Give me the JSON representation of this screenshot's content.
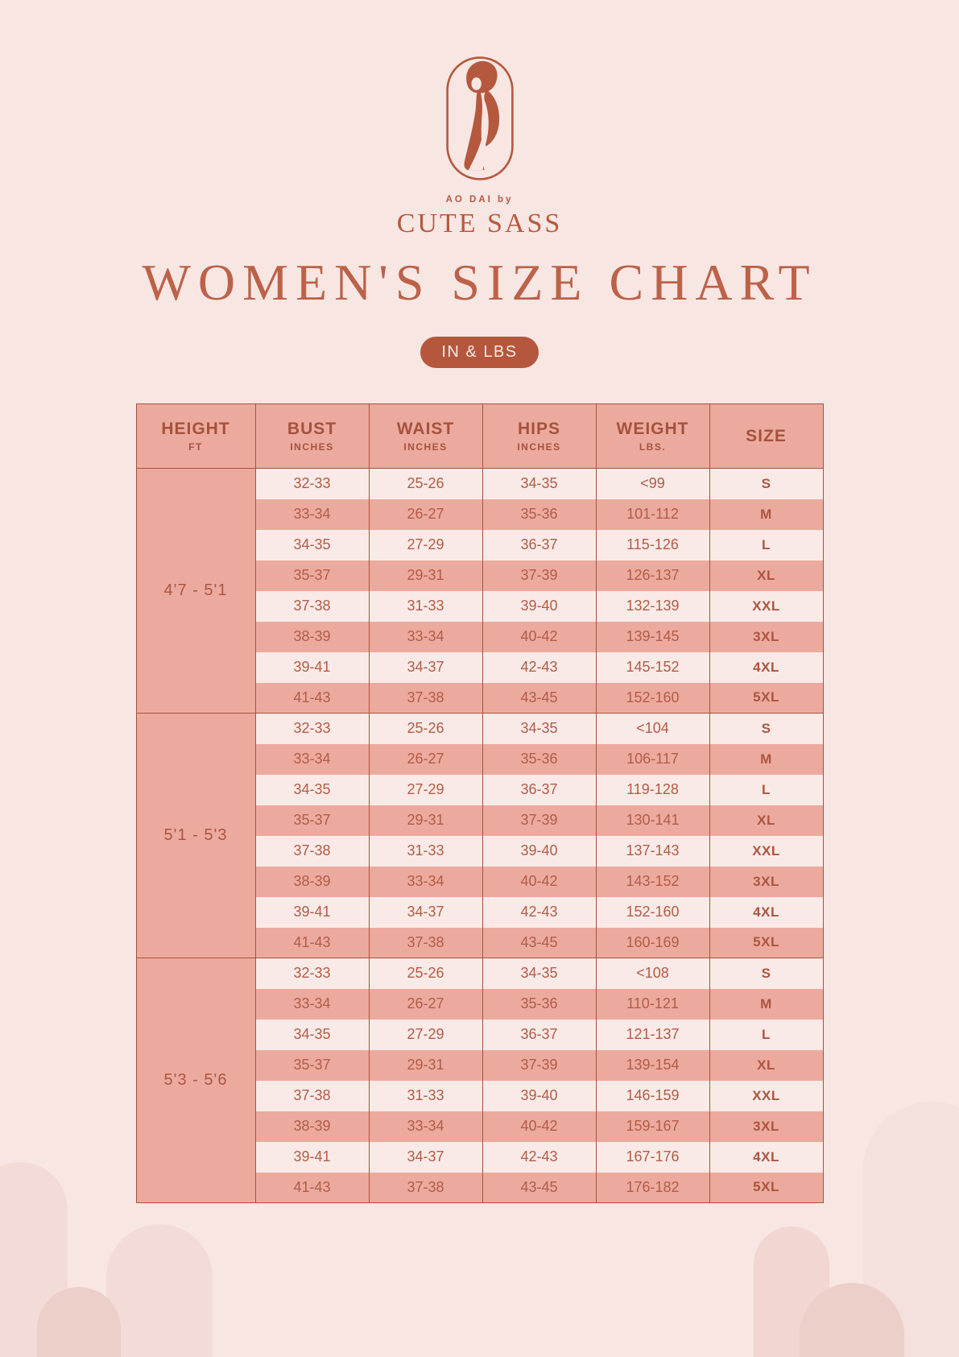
{
  "page": {
    "background": "#f8e6e3",
    "accent": "#b5593e",
    "title_color": "#bc6249",
    "row_pink": "#ecaa9e",
    "row_light": "#f9eae7",
    "border_color": "#a7523c"
  },
  "logo": {
    "tagline": "AO DAI by",
    "brand": "CUTE SASS"
  },
  "title": "WOMEN'S SIZE CHART",
  "unit_badge": "IN & LBS",
  "size_table": {
    "headers": [
      {
        "label": "HEIGHT",
        "sub": "FT"
      },
      {
        "label": "BUST",
        "sub": "INCHES"
      },
      {
        "label": "WAIST",
        "sub": "INCHES"
      },
      {
        "label": "HIPS",
        "sub": "INCHES"
      },
      {
        "label": "WEIGHT",
        "sub": "LBS."
      },
      {
        "label": "SIZE",
        "sub": ""
      }
    ],
    "groups": [
      {
        "height": "4'7 - 5'1",
        "rows": [
          {
            "bust": "32-33",
            "waist": "25-26",
            "hips": "34-35",
            "weight": "<99",
            "size": "S"
          },
          {
            "bust": "33-34",
            "waist": "26-27",
            "hips": "35-36",
            "weight": "101-112",
            "size": "M"
          },
          {
            "bust": "34-35",
            "waist": "27-29",
            "hips": "36-37",
            "weight": "115-126",
            "size": "L"
          },
          {
            "bust": "35-37",
            "waist": "29-31",
            "hips": "37-39",
            "weight": "126-137",
            "size": "XL"
          },
          {
            "bust": "37-38",
            "waist": "31-33",
            "hips": "39-40",
            "weight": "132-139",
            "size": "XXL"
          },
          {
            "bust": "38-39",
            "waist": "33-34",
            "hips": "40-42",
            "weight": "139-145",
            "size": "3XL"
          },
          {
            "bust": "39-41",
            "waist": "34-37",
            "hips": "42-43",
            "weight": "145-152",
            "size": "4XL"
          },
          {
            "bust": "41-43",
            "waist": "37-38",
            "hips": "43-45",
            "weight": "152-160",
            "size": "5XL"
          }
        ]
      },
      {
        "height": "5'1 - 5'3",
        "rows": [
          {
            "bust": "32-33",
            "waist": "25-26",
            "hips": "34-35",
            "weight": "<104",
            "size": "S"
          },
          {
            "bust": "33-34",
            "waist": "26-27",
            "hips": "35-36",
            "weight": "106-117",
            "size": "M"
          },
          {
            "bust": "34-35",
            "waist": "27-29",
            "hips": "36-37",
            "weight": "119-128",
            "size": "L"
          },
          {
            "bust": "35-37",
            "waist": "29-31",
            "hips": "37-39",
            "weight": "130-141",
            "size": "XL"
          },
          {
            "bust": "37-38",
            "waist": "31-33",
            "hips": "39-40",
            "weight": "137-143",
            "size": "XXL"
          },
          {
            "bust": "38-39",
            "waist": "33-34",
            "hips": "40-42",
            "weight": "143-152",
            "size": "3XL"
          },
          {
            "bust": "39-41",
            "waist": "34-37",
            "hips": "42-43",
            "weight": "152-160",
            "size": "4XL"
          },
          {
            "bust": "41-43",
            "waist": "37-38",
            "hips": "43-45",
            "weight": "160-169",
            "size": "5XL"
          }
        ]
      },
      {
        "height": "5'3 - 5'6",
        "rows": [
          {
            "bust": "32-33",
            "waist": "25-26",
            "hips": "34-35",
            "weight": "<108",
            "size": "S"
          },
          {
            "bust": "33-34",
            "waist": "26-27",
            "hips": "35-36",
            "weight": "110-121",
            "size": "M"
          },
          {
            "bust": "34-35",
            "waist": "27-29",
            "hips": "36-37",
            "weight": "121-137",
            "size": "L"
          },
          {
            "bust": "35-37",
            "waist": "29-31",
            "hips": "37-39",
            "weight": "139-154",
            "size": "XL"
          },
          {
            "bust": "37-38",
            "waist": "31-33",
            "hips": "39-40",
            "weight": "146-159",
            "size": "XXL"
          },
          {
            "bust": "38-39",
            "waist": "33-34",
            "hips": "40-42",
            "weight": "159-167",
            "size": "3XL"
          },
          {
            "bust": "39-41",
            "waist": "34-37",
            "hips": "42-43",
            "weight": "167-176",
            "size": "4XL"
          },
          {
            "bust": "41-43",
            "waist": "37-38",
            "hips": "43-45",
            "weight": "176-182",
            "size": "5XL"
          }
        ]
      }
    ]
  }
}
